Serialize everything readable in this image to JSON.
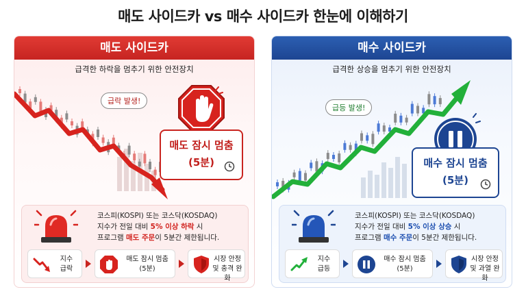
{
  "title": "매도 사이드카 vs 매수 사이드카 한눈에 이해하기",
  "sell": {
    "banner": "매도 사이드카",
    "subtitle": "급격한 하락을 멈추기 위한 안전장치",
    "bubble": "급락 발생!",
    "status_line1": "매도 잠시 멈춤",
    "status_line2": "(5분)",
    "info_line1": "코스피(KOSPI) 또는 코스닥(KOSDAQ)",
    "info_line2_pre": "지수가 전일 대비 ",
    "info_line2_hl": "5% 이상 하락",
    "info_line2_post": " 시",
    "info_line3_pre": "프로그램 ",
    "info_line3_hl": "매도 주문",
    "info_line3_post": "이 5분간 제한됩니다.",
    "step1_a": "지수",
    "step1_b": "급락",
    "step2_a": "매도 잠시 멈춤",
    "step2_b": "(5분)",
    "step3_a": "시장 안정",
    "step3_b": "및 충격 완화",
    "accent": "#c9241f"
  },
  "buy": {
    "banner": "매수 사이드카",
    "subtitle": "급격한 상승을 멈추기 위한 안전장치",
    "bubble": "급등 발생!",
    "status_line1": "매수 잠시 멈춤",
    "status_line2": "(5분)",
    "info_line1": "코스피(KOSPI) 또는 코스닥(KOSDAQ)",
    "info_line2_pre": "지수가 전일 대비 ",
    "info_line2_hl": "5% 이상 상승",
    "info_line2_post": " 시",
    "info_line3_pre": "프로그램 ",
    "info_line3_hl": "매수 주문",
    "info_line3_post": "이 5분간 제한됩니다.",
    "step1_a": "지수",
    "step1_b": "급등",
    "step2_a": "매수 잠시 멈춤",
    "step2_b": "(5분)",
    "step3_a": "시장 안정",
    "step3_b": "및 과열 완화",
    "accent": "#1d4592"
  },
  "icons": {
    "sell_sign": "stop-hand-icon",
    "buy_sign": "pause-icon",
    "clock": "clock-icon",
    "siren": "siren-icon",
    "shield": "shield-icon"
  }
}
